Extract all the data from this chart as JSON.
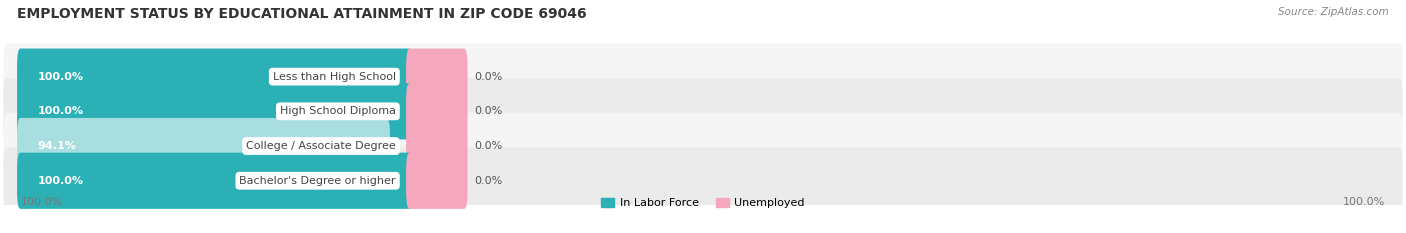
{
  "title": "EMPLOYMENT STATUS BY EDUCATIONAL ATTAINMENT IN ZIP CODE 69046",
  "source": "Source: ZipAtlas.com",
  "categories": [
    "Less than High School",
    "High School Diploma",
    "College / Associate Degree",
    "Bachelor's Degree or higher"
  ],
  "labor_force": [
    100.0,
    100.0,
    94.1,
    100.0
  ],
  "unemployed": [
    0.0,
    0.0,
    0.0,
    0.0
  ],
  "labor_force_color": "#2ab0b5",
  "labor_force_color_light": "#a8dee0",
  "unemployed_color": "#f5a7be",
  "row_bg_even": "#ebebeb",
  "row_bg_odd": "#f5f5f5",
  "title_fontsize": 10,
  "source_fontsize": 7.5,
  "label_fontsize": 8,
  "tick_fontsize": 8,
  "legend_fontsize": 8,
  "figsize": [
    14.06,
    2.33
  ],
  "dpi": 100,
  "bottom_left_label": "100.0%",
  "bottom_right_label": "100.0%"
}
